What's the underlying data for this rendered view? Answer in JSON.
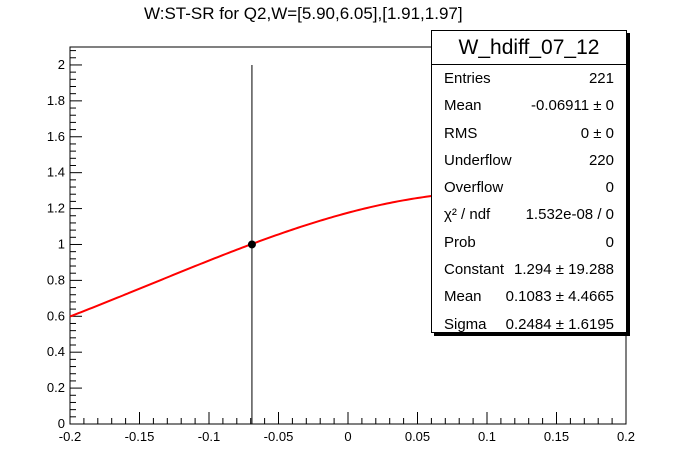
{
  "title": "W:ST-SR for Q2,W=[5.90,6.05],[1.91,1.97]",
  "stats": {
    "name": "W_hdiff_07_12",
    "rows": [
      {
        "key": "Entries",
        "value": "221"
      },
      {
        "key": "Mean",
        "value": "-0.06911 ±     0"
      },
      {
        "key": "RMS",
        "value": "0 ±     0"
      },
      {
        "key": "Underflow",
        "value": "220"
      },
      {
        "key": "Overflow",
        "value": "0"
      },
      {
        "key": "χ² / ndf",
        "value": "1.532e-08 / 0"
      },
      {
        "key": "Prob",
        "value": "0"
      },
      {
        "key": "Constant",
        "value": "1.294 ± 19.288"
      },
      {
        "key": "Mean",
        "value": "0.1083 ± 4.4665"
      },
      {
        "key": "Sigma",
        "value": "0.2484 ± 1.6195"
      }
    ]
  },
  "chart_data": {
    "type": "line",
    "xlim": [
      -0.2,
      0.2
    ],
    "ylim": [
      0,
      2.1
    ],
    "x_ticks": [
      "-0.2",
      "-0.15",
      "-0.1",
      "-0.05",
      "0",
      "0.05",
      "0.1",
      "0.15",
      "0.2"
    ],
    "y_ticks": [
      "0",
      "0.2",
      "0.4",
      "0.6",
      "0.8",
      "1",
      "1.2",
      "1.4",
      "1.6",
      "1.8",
      "2"
    ],
    "point": {
      "x": -0.06911,
      "y": 1.0,
      "yerr": [
        0,
        2.0
      ]
    },
    "fit": {
      "function": "gaus",
      "constant": 1.294,
      "mean": 0.1083,
      "sigma": 0.2484,
      "color": "#ff0000"
    },
    "grid": false
  }
}
